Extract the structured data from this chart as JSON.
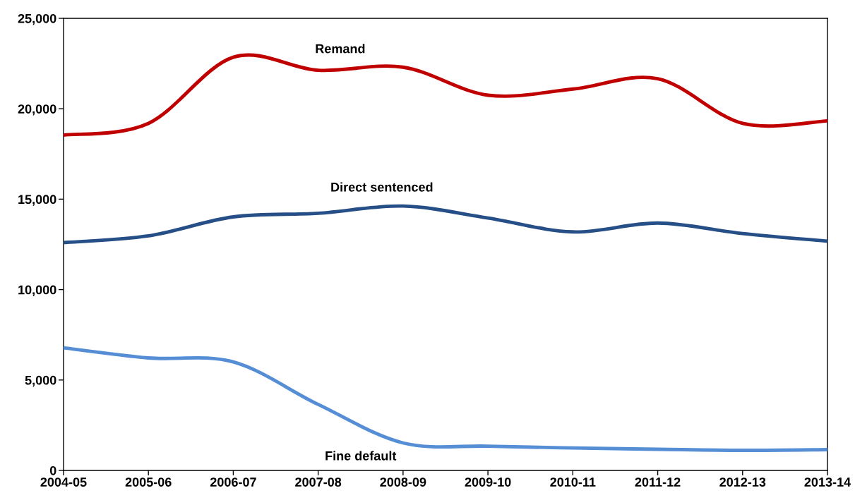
{
  "chart_data": {
    "type": "line",
    "categories": [
      "2004-05",
      "2005-06",
      "2006-07",
      "2007-08",
      "2008-09",
      "2009-10",
      "2010-11",
      "2011-12",
      "2012-13",
      "2013-14"
    ],
    "series": [
      {
        "name": "Remand",
        "color": "#c00000",
        "values": [
          18540,
          19190,
          22850,
          22130,
          22300,
          20750,
          21090,
          21660,
          19190,
          19330
        ]
      },
      {
        "name": "Direct sentenced",
        "color": "#254f86",
        "values": [
          12600,
          12970,
          14020,
          14220,
          14620,
          13960,
          13190,
          13680,
          13100,
          12680
        ]
      },
      {
        "name": "Fine default",
        "color": "#558ed5",
        "values": [
          6780,
          6220,
          6000,
          3650,
          1520,
          1340,
          1240,
          1170,
          1110,
          1150
        ]
      }
    ],
    "ylim": [
      0,
      25000
    ],
    "yticks": [
      {
        "value": 0,
        "label": "0"
      },
      {
        "value": 5000,
        "label": "5,000"
      },
      {
        "value": 10000,
        "label": "10,000"
      },
      {
        "value": 15000,
        "label": "15,000"
      },
      {
        "value": 20000,
        "label": "20,000"
      },
      {
        "value": 25000,
        "label": "25,000"
      }
    ],
    "grid": false,
    "legend": false,
    "marker": "none",
    "line_style": "solid"
  }
}
